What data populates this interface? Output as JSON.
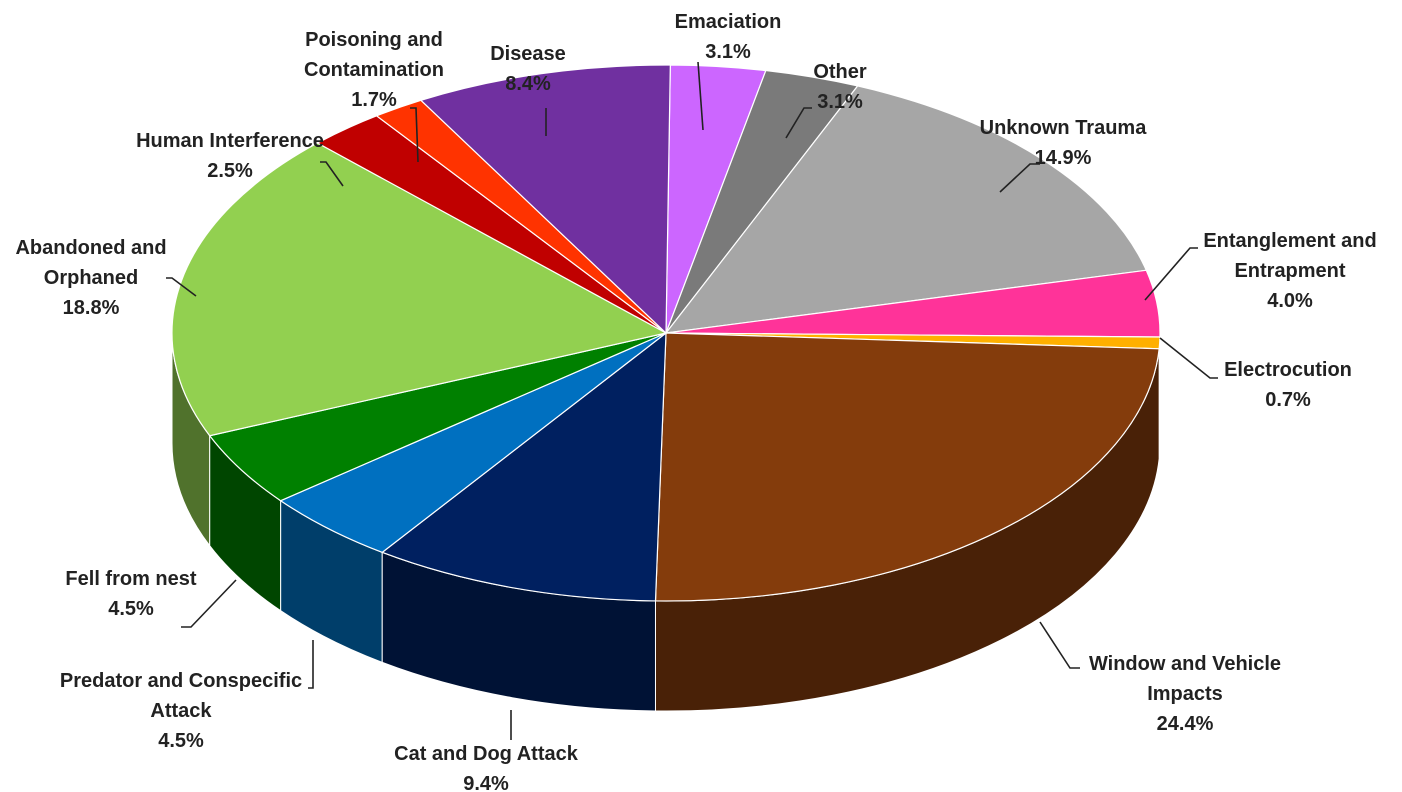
{
  "chart_data": {
    "type": "pie",
    "style": "3d-exploded-none",
    "title": "",
    "slices": [
      {
        "name": "Emaciation",
        "label_lines": [
          "Emaciation"
        ],
        "value_label": "3.1%",
        "value": 3.1,
        "color": "#cc66ff"
      },
      {
        "name": "Other",
        "label_lines": [
          "Other"
        ],
        "value_label": "3.1%",
        "value": 3.1,
        "color": "#7a7a7a"
      },
      {
        "name": "Unknown Trauma",
        "label_lines": [
          "Unknown Trauma"
        ],
        "value_label": "14.9%",
        "value": 14.9,
        "color": "#a6a6a6"
      },
      {
        "name": "Entanglement and Entrapment",
        "label_lines": [
          "Entanglement and",
          "Entrapment"
        ],
        "value_label": "4.0%",
        "value": 4.0,
        "color": "#ff3399"
      },
      {
        "name": "Electrocution",
        "label_lines": [
          "Electrocution"
        ],
        "value_label": "0.7%",
        "value": 0.7,
        "color": "#ffb000"
      },
      {
        "name": "Window and Vehicle Impacts",
        "label_lines": [
          "Window and Vehicle",
          "Impacts"
        ],
        "value_label": "24.4%",
        "value": 24.4,
        "color": "#843c0c"
      },
      {
        "name": "Cat and Dog Attack",
        "label_lines": [
          "Cat and Dog Attack"
        ],
        "value_label": "9.4%",
        "value": 9.4,
        "color": "#002060"
      },
      {
        "name": "Predator and Conspecific Attack",
        "label_lines": [
          "Predator and Conspecific",
          "Attack"
        ],
        "value_label": "4.5%",
        "value": 4.5,
        "color": "#0070c0"
      },
      {
        "name": "Fell from nest",
        "label_lines": [
          "Fell from nest"
        ],
        "value_label": "4.5%",
        "value": 4.5,
        "color": "#008000"
      },
      {
        "name": "Abandoned and Orphaned",
        "label_lines": [
          "Abandoned and",
          "Orphaned"
        ],
        "value_label": "18.8%",
        "value": 18.8,
        "color": "#92d050"
      },
      {
        "name": "Human Interference",
        "label_lines": [
          "Human Interference"
        ],
        "value_label": "2.5%",
        "value": 2.5,
        "color": "#c00000"
      },
      {
        "name": "Poisoning and Contamination",
        "label_lines": [
          "Poisoning and",
          "Contamination"
        ],
        "value_label": "1.7%",
        "value": 1.7,
        "color": "#ff3300"
      },
      {
        "name": "Disease",
        "label_lines": [
          "Disease"
        ],
        "value_label": "8.4%",
        "value": 8.4,
        "color": "#7030a0"
      }
    ]
  }
}
